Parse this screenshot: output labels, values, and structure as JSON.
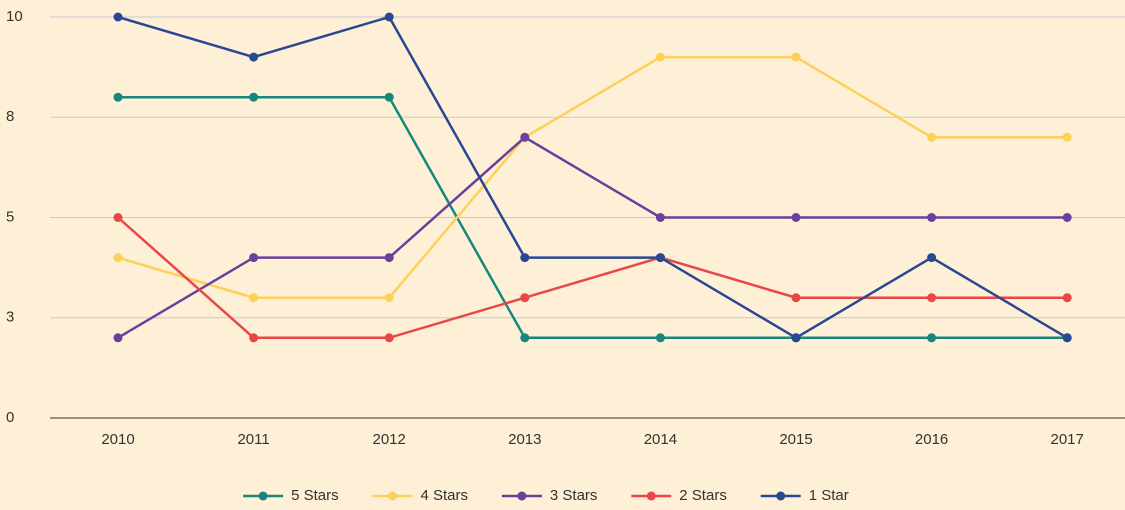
{
  "chart_data": {
    "type": "line",
    "categories": [
      "2010",
      "2011",
      "2012",
      "2013",
      "2014",
      "2015",
      "2016",
      "2017"
    ],
    "series": [
      {
        "name": "5 Stars",
        "color": "#16877a",
        "values": [
          8,
          8,
          8,
          2,
          2,
          2,
          2,
          2
        ]
      },
      {
        "name": "4 Stars",
        "color": "#fdd05a",
        "values": [
          4,
          3,
          3,
          7,
          9,
          9,
          7,
          7
        ]
      },
      {
        "name": "3 Stars",
        "color": "#6b3f9b",
        "values": [
          2,
          4,
          4,
          7,
          5,
          5,
          5,
          5
        ]
      },
      {
        "name": "2 Stars",
        "color": "#ea4646",
        "values": [
          5,
          2,
          2,
          3,
          4,
          3,
          3,
          3
        ]
      },
      {
        "name": "1 Star",
        "color": "#2a4793",
        "values": [
          10,
          9,
          10,
          4,
          4,
          2,
          4,
          2
        ]
      }
    ],
    "ylim": [
      0,
      10
    ],
    "yticks": [
      0,
      {
        "value": 2.5,
        "label": "3"
      },
      5,
      {
        "value": 7.5,
        "label": "8"
      },
      10
    ],
    "grid": true,
    "legend": "bottom"
  }
}
